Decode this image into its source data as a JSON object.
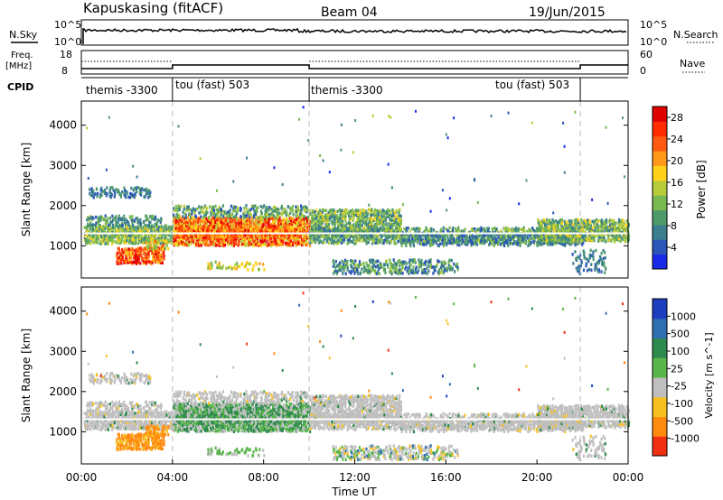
{
  "header": {
    "station": "Kapuskasing (fitACF)",
    "beam": "Beam 04",
    "date": "19/Jun/2015"
  },
  "panels": {
    "nsky_label": "N.Sky",
    "nsky_ticks": [
      "10^5",
      "10^0"
    ],
    "nsearch_label": "N.Search",
    "nsearch_ticks": [
      "10^5",
      "10^0"
    ],
    "freq_label": "Freq.",
    "freq_unit": "[MHz]",
    "freq_ticks": [
      "18",
      "8"
    ],
    "nave_label": "Nave",
    "nave_ticks": [
      "60",
      "0"
    ],
    "cpid_label": "CPID",
    "cpid_segments": [
      "themis -3300",
      "tou (fast) 503",
      "themis -3300",
      "tou (fast) 503"
    ]
  },
  "chart_data": [
    {
      "type": "heatmap",
      "title": "",
      "xlabel": "",
      "ylabel": "Slant Range [km]",
      "y_ticks": [
        "1000",
        "2000",
        "3000",
        "4000"
      ],
      "ylim": [
        200,
        4600
      ],
      "colorbar": {
        "label": "Power [dB]",
        "ticks": [
          "4",
          "8",
          "12",
          "16",
          "20",
          "24",
          "28"
        ],
        "range": [
          0,
          30
        ],
        "colors": [
          "#1a2ae6",
          "#2a56b8",
          "#3b7f8c",
          "#4f9a6a",
          "#7ab850",
          "#b7cc3a",
          "#ffd11a",
          "#ff9a1a",
          "#ff5a10",
          "#ff2a00",
          "#e00000"
        ]
      }
    },
    {
      "type": "heatmap",
      "title": "",
      "xlabel": "Time UT",
      "ylabel": "Slant Range [km]",
      "y_ticks": [
        "1000",
        "2000",
        "3000",
        "4000"
      ],
      "ylim": [
        200,
        4600
      ],
      "x_ticks": [
        "00:00",
        "04:00",
        "08:00",
        "12:00",
        "16:00",
        "20:00",
        "00:00"
      ],
      "xlim_hours": [
        0,
        24
      ],
      "colorbar": {
        "label": "Velocity [m s^-1]",
        "ticks": [
          "1000",
          "500",
          "100",
          "25",
          "-25",
          "-100",
          "-500",
          "-1000"
        ],
        "colors": [
          "#1d3fbf",
          "#2f6fb0",
          "#2e8a4e",
          "#5ab64a",
          "#bfbfbf",
          "#f5c020",
          "#ff8a10",
          "#f03010"
        ]
      }
    }
  ]
}
